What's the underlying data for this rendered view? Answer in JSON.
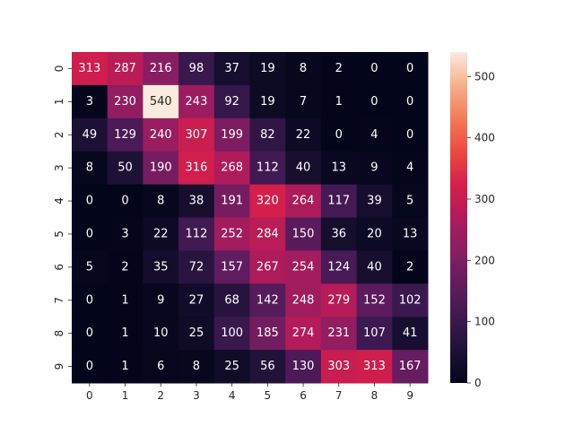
{
  "chart_data": {
    "type": "heatmap",
    "title": "",
    "xlabel": "",
    "ylabel": "",
    "x_categories": [
      "0",
      "1",
      "2",
      "3",
      "4",
      "5",
      "6",
      "7",
      "8",
      "9"
    ],
    "y_categories": [
      "0",
      "1",
      "2",
      "3",
      "4",
      "5",
      "6",
      "7",
      "8",
      "9"
    ],
    "values": [
      [
        313,
        287,
        216,
        98,
        37,
        19,
        8,
        2,
        0,
        0
      ],
      [
        3,
        230,
        540,
        243,
        92,
        19,
        7,
        1,
        0,
        0
      ],
      [
        49,
        129,
        240,
        307,
        199,
        82,
        22,
        0,
        4,
        0
      ],
      [
        8,
        50,
        190,
        316,
        268,
        112,
        40,
        13,
        9,
        4
      ],
      [
        0,
        0,
        8,
        38,
        191,
        320,
        264,
        117,
        39,
        5
      ],
      [
        0,
        3,
        22,
        112,
        252,
        284,
        150,
        36,
        20,
        13
      ],
      [
        5,
        2,
        35,
        72,
        157,
        267,
        254,
        124,
        40,
        2
      ],
      [
        0,
        1,
        9,
        27,
        68,
        142,
        248,
        279,
        152,
        102
      ],
      [
        0,
        1,
        10,
        25,
        100,
        185,
        274,
        231,
        107,
        41
      ],
      [
        0,
        1,
        6,
        8,
        25,
        56,
        130,
        303,
        313,
        167
      ]
    ],
    "colormap": "rocket",
    "color_range": [
      0,
      540
    ],
    "colorbar_ticks": [
      0,
      100,
      200,
      300,
      400,
      500
    ],
    "annotations": true,
    "grid": false,
    "legend": "colorbar-right"
  }
}
